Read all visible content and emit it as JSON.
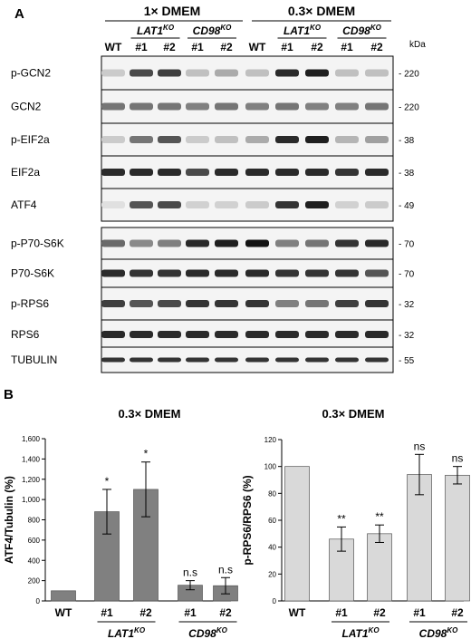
{
  "panel_a": {
    "label": "A",
    "condition_1": "1× DMEM",
    "condition_2": "0.3× DMEM",
    "groups": [
      {
        "name": "WT",
        "sup": "",
        "clones": []
      },
      {
        "name": "LAT1",
        "sup": "KO",
        "clones": [
          "#1",
          "#2"
        ]
      },
      {
        "name": "CD98",
        "sup": "KO",
        "clones": [
          "#1",
          "#2"
        ]
      }
    ],
    "kda_label": "kDa",
    "blots": [
      {
        "label": "p-GCN2",
        "kda": "220",
        "intensity": [
          0.15,
          0.75,
          0.8,
          0.2,
          0.3,
          0.2,
          0.9,
          0.95,
          0.2,
          0.2
        ]
      },
      {
        "label": "GCN2",
        "kda": "220",
        "intensity": [
          0.55,
          0.55,
          0.55,
          0.5,
          0.55,
          0.5,
          0.55,
          0.5,
          0.5,
          0.55
        ]
      },
      {
        "label": "p-EIF2a",
        "kda": "38",
        "intensity": [
          0.15,
          0.55,
          0.7,
          0.15,
          0.2,
          0.3,
          0.9,
          0.95,
          0.25,
          0.35
        ]
      },
      {
        "label": "EIF2a",
        "kda": "38",
        "intensity": [
          0.9,
          0.9,
          0.9,
          0.75,
          0.9,
          0.9,
          0.9,
          0.9,
          0.85,
          0.9
        ]
      },
      {
        "label": "ATF4",
        "kda": "49",
        "intensity": [
          0.05,
          0.7,
          0.75,
          0.12,
          0.12,
          0.15,
          0.85,
          0.95,
          0.12,
          0.15
        ]
      },
      {
        "label": "p-P70-S6K",
        "kda": "70",
        "intensity": [
          0.6,
          0.45,
          0.5,
          0.9,
          0.95,
          1.0,
          0.5,
          0.55,
          0.85,
          0.9
        ]
      },
      {
        "label": "P70-S6K",
        "kda": "70",
        "intensity": [
          0.9,
          0.85,
          0.85,
          0.9,
          0.9,
          0.9,
          0.85,
          0.85,
          0.85,
          0.7
        ]
      },
      {
        "label": "p-RPS6",
        "kda": "32",
        "intensity": [
          0.8,
          0.7,
          0.75,
          0.85,
          0.85,
          0.85,
          0.5,
          0.55,
          0.8,
          0.85
        ]
      },
      {
        "label": "RPS6",
        "kda": "32",
        "intensity": [
          0.9,
          0.9,
          0.9,
          0.9,
          0.9,
          0.9,
          0.9,
          0.9,
          0.9,
          0.9
        ]
      },
      {
        "label": "TUBULIN",
        "kda": "55",
        "intensity": [
          0.85,
          0.85,
          0.85,
          0.85,
          0.85,
          0.85,
          0.85,
          0.85,
          0.85,
          0.85
        ]
      }
    ]
  },
  "panel_b": {
    "label": "B",
    "bar_color": "#808080",
    "bar_color_2": "#d9d9d9"
  },
  "chart_data": [
    {
      "type": "bar",
      "title": "0.3× DMEM",
      "ylabel": "ATF4/Tubulin (%)",
      "ylim": [
        0,
        1600
      ],
      "yticks": [
        "0",
        "200",
        "400",
        "600",
        "800",
        "1,000",
        "1,200",
        "1,400",
        "1,600"
      ],
      "categories": [
        "WT",
        "#1",
        "#2",
        "#1",
        "#2"
      ],
      "groups": [
        {
          "name": "LAT1",
          "sup": "KO"
        },
        {
          "name": "CD98",
          "sup": "KO"
        }
      ],
      "values": [
        100,
        880,
        1100,
        155,
        150
      ],
      "errors": [
        0,
        220,
        270,
        45,
        80
      ],
      "annotations": [
        "",
        "*",
        "*",
        "n.s",
        "n.s"
      ]
    },
    {
      "type": "bar",
      "title": "0.3× DMEM",
      "ylabel": "p-RPS6/RPS6 (%)",
      "ylim": [
        0,
        120
      ],
      "yticks": [
        "0",
        "20",
        "40",
        "60",
        "80",
        "100",
        "120"
      ],
      "categories": [
        "WT",
        "#1",
        "#2",
        "#1",
        "#2"
      ],
      "groups": [
        {
          "name": "LAT1",
          "sup": "KO"
        },
        {
          "name": "CD98",
          "sup": "KO"
        }
      ],
      "values": [
        100,
        46,
        50,
        94,
        93.5
      ],
      "errors": [
        0,
        9,
        6.5,
        15,
        6.5
      ],
      "annotations": [
        "",
        "**",
        "**",
        "ns",
        "ns"
      ]
    }
  ]
}
